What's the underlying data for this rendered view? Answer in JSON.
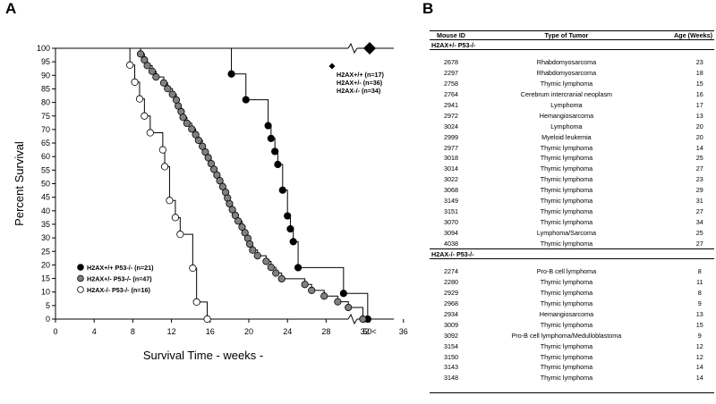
{
  "panel_a": {
    "letter": "A"
  },
  "panel_b": {
    "letter": "B"
  },
  "chart_data": {
    "type": "line",
    "subtype": "kaplan-meier survival",
    "title": "",
    "xlabel": "Survival Time - weeks -",
    "ylabel": "Percent Survival",
    "xlim": [
      0,
      36
    ],
    "ylim": [
      0,
      100
    ],
    "x_ticks": [
      "0",
      "4",
      "8",
      "12",
      "16",
      "20",
      "24",
      "28",
      "32",
      "36"
    ],
    "x_break_label": "50<",
    "y_ticks": [
      "0",
      "5",
      "10",
      "15",
      "20",
      "25",
      "30",
      "35",
      "40",
      "45",
      "50",
      "55",
      "60",
      "65",
      "70",
      "75",
      "80",
      "85",
      "90",
      "95",
      "100"
    ],
    "grid": false,
    "legend_position": "bottom-left",
    "series": [
      {
        "name": "H2AX+/+ P53-/- (n=21)",
        "marker": "filled-black",
        "color": "#000000",
        "x": [
          0,
          18.2,
          19.7,
          22.0,
          22.3,
          22.7,
          23.0,
          23.5,
          24.0,
          24.3,
          24.6,
          25.1,
          29.8,
          32.3
        ],
        "y": [
          100,
          90.5,
          81.0,
          71.4,
          66.7,
          61.9,
          57.1,
          47.6,
          38.1,
          33.3,
          28.6,
          19.0,
          9.5,
          0
        ]
      },
      {
        "name": "H2AX+/- P53-/- (n=47)",
        "marker": "filled-gray",
        "color": "#808080",
        "x": [
          0,
          8.8,
          9.2,
          9.5,
          10.0,
          10.4,
          11.2,
          11.6,
          12.1,
          12.5,
          12.7,
          13.0,
          13.2,
          13.6,
          14.1,
          14.5,
          14.8,
          15.2,
          15.5,
          15.8,
          16.1,
          16.4,
          16.7,
          17.0,
          17.3,
          17.6,
          17.8,
          18.0,
          18.3,
          18.6,
          18.9,
          19.3,
          19.6,
          19.9,
          20.1,
          20.4,
          20.9,
          21.8,
          22.3,
          22.8,
          23.4,
          25.8,
          26.5,
          27.8,
          29.2,
          30.3,
          31.8
        ],
        "y": [
          100,
          97.9,
          95.7,
          93.6,
          91.5,
          89.4,
          87.2,
          85.1,
          83.0,
          80.9,
          78.7,
          76.6,
          74.5,
          72.3,
          70.2,
          68.1,
          66.0,
          63.8,
          61.7,
          59.6,
          57.4,
          55.3,
          53.2,
          51.1,
          48.9,
          46.8,
          44.7,
          42.6,
          40.4,
          38.3,
          36.2,
          34.0,
          31.9,
          29.8,
          27.7,
          25.5,
          23.4,
          21.3,
          19.1,
          17.0,
          14.9,
          12.8,
          10.6,
          8.5,
          6.4,
          4.3,
          0
        ]
      },
      {
        "name": "H2AX-/- P53-/- (n=16)",
        "marker": "open",
        "color": "#ffffff",
        "x": [
          0,
          7.7,
          8.2,
          8.7,
          9.2,
          9.8,
          11.1,
          11.3,
          11.8,
          12.4,
          12.9,
          14.2,
          14.6,
          15.7
        ],
        "y": [
          100,
          93.8,
          87.5,
          81.3,
          75.0,
          68.8,
          62.5,
          56.3,
          43.8,
          37.5,
          31.3,
          18.8,
          6.3,
          0
        ]
      }
    ],
    "diamond_annotation": {
      "x_label": "50<",
      "y": 100,
      "lines": [
        "H2AX+/+ (n=17)",
        "H2AX+/- (n=36)",
        "H2AX-/- (n=34)"
      ]
    }
  },
  "table": {
    "headers": {
      "mouse_id": "Mouse ID",
      "tumor": "Type of Tumor",
      "age": "Age (Weeks)"
    },
    "groups": [
      {
        "label": "H2AX+/- P53-/-",
        "rows": [
          {
            "id": "2678",
            "tumor": "Rhabdomyosarcoma",
            "age": "23"
          },
          {
            "id": "2297",
            "tumor": "Rhabdomyosarcoma",
            "age": "18"
          },
          {
            "id": "2758",
            "tumor": "Thymic lymphoma",
            "age": "15"
          },
          {
            "id": "2764",
            "tumor": "Cerebrum intercranial neoplasm",
            "age": "16"
          },
          {
            "id": "2941",
            "tumor": "Lymphoma",
            "age": "17"
          },
          {
            "id": "2972",
            "tumor": "Hemangiosarcoma",
            "age": "13"
          },
          {
            "id": "3024",
            "tumor": "Lymphoma",
            "age": "20"
          },
          {
            "id": "2999",
            "tumor": "Myeloid leukemia",
            "age": "20"
          },
          {
            "id": "2977",
            "tumor": "Thymic lymphoma",
            "age": "14"
          },
          {
            "id": "3018",
            "tumor": "Thymic lymphoma",
            "age": "25"
          },
          {
            "id": "3014",
            "tumor": "Thymic lymphoma",
            "age": "27"
          },
          {
            "id": "3022",
            "tumor": "Thymic lymphoma",
            "age": "23"
          },
          {
            "id": "3068",
            "tumor": "Thymic lymphoma",
            "age": "29"
          },
          {
            "id": "3149",
            "tumor": "Thymic lymphoma",
            "age": "31"
          },
          {
            "id": "3151",
            "tumor": "Thymic lymphoma",
            "age": "27"
          },
          {
            "id": "3070",
            "tumor": "Thymic lymphoma",
            "age": "34"
          },
          {
            "id": "3094",
            "tumor": "Lymphoma/Sarcoma",
            "age": "25"
          },
          {
            "id": "4038",
            "tumor": "Thymic lymphoma",
            "age": "27"
          }
        ]
      },
      {
        "label": "H2AX-/- P53-/-",
        "rows": [
          {
            "id": "2274",
            "tumor": "Pro-B cell lymphoma",
            "age": "8"
          },
          {
            "id": "2280",
            "tumor": "Thymic lymphoma",
            "age": "11"
          },
          {
            "id": "2929",
            "tumor": "Thymic lymphoma",
            "age": "8"
          },
          {
            "id": "2968",
            "tumor": "Thymic lymphoma",
            "age": "9"
          },
          {
            "id": "2934",
            "tumor": "Hemangiosarcoma",
            "age": "13"
          },
          {
            "id": "3009",
            "tumor": "Thymic lymphoma",
            "age": "15"
          },
          {
            "id": "3092",
            "tumor": "Pro-B cell lymphoma/Medulloblastoma",
            "age": "9"
          },
          {
            "id": "3154",
            "tumor": "Thymic lymphoma",
            "age": "12"
          },
          {
            "id": "3150",
            "tumor": "Thymic lymphoma",
            "age": "12"
          },
          {
            "id": "3143",
            "tumor": "Thymic lymphoma",
            "age": "14"
          },
          {
            "id": "3148",
            "tumor": "Thymic lymphoma",
            "age": "14"
          }
        ]
      }
    ]
  }
}
